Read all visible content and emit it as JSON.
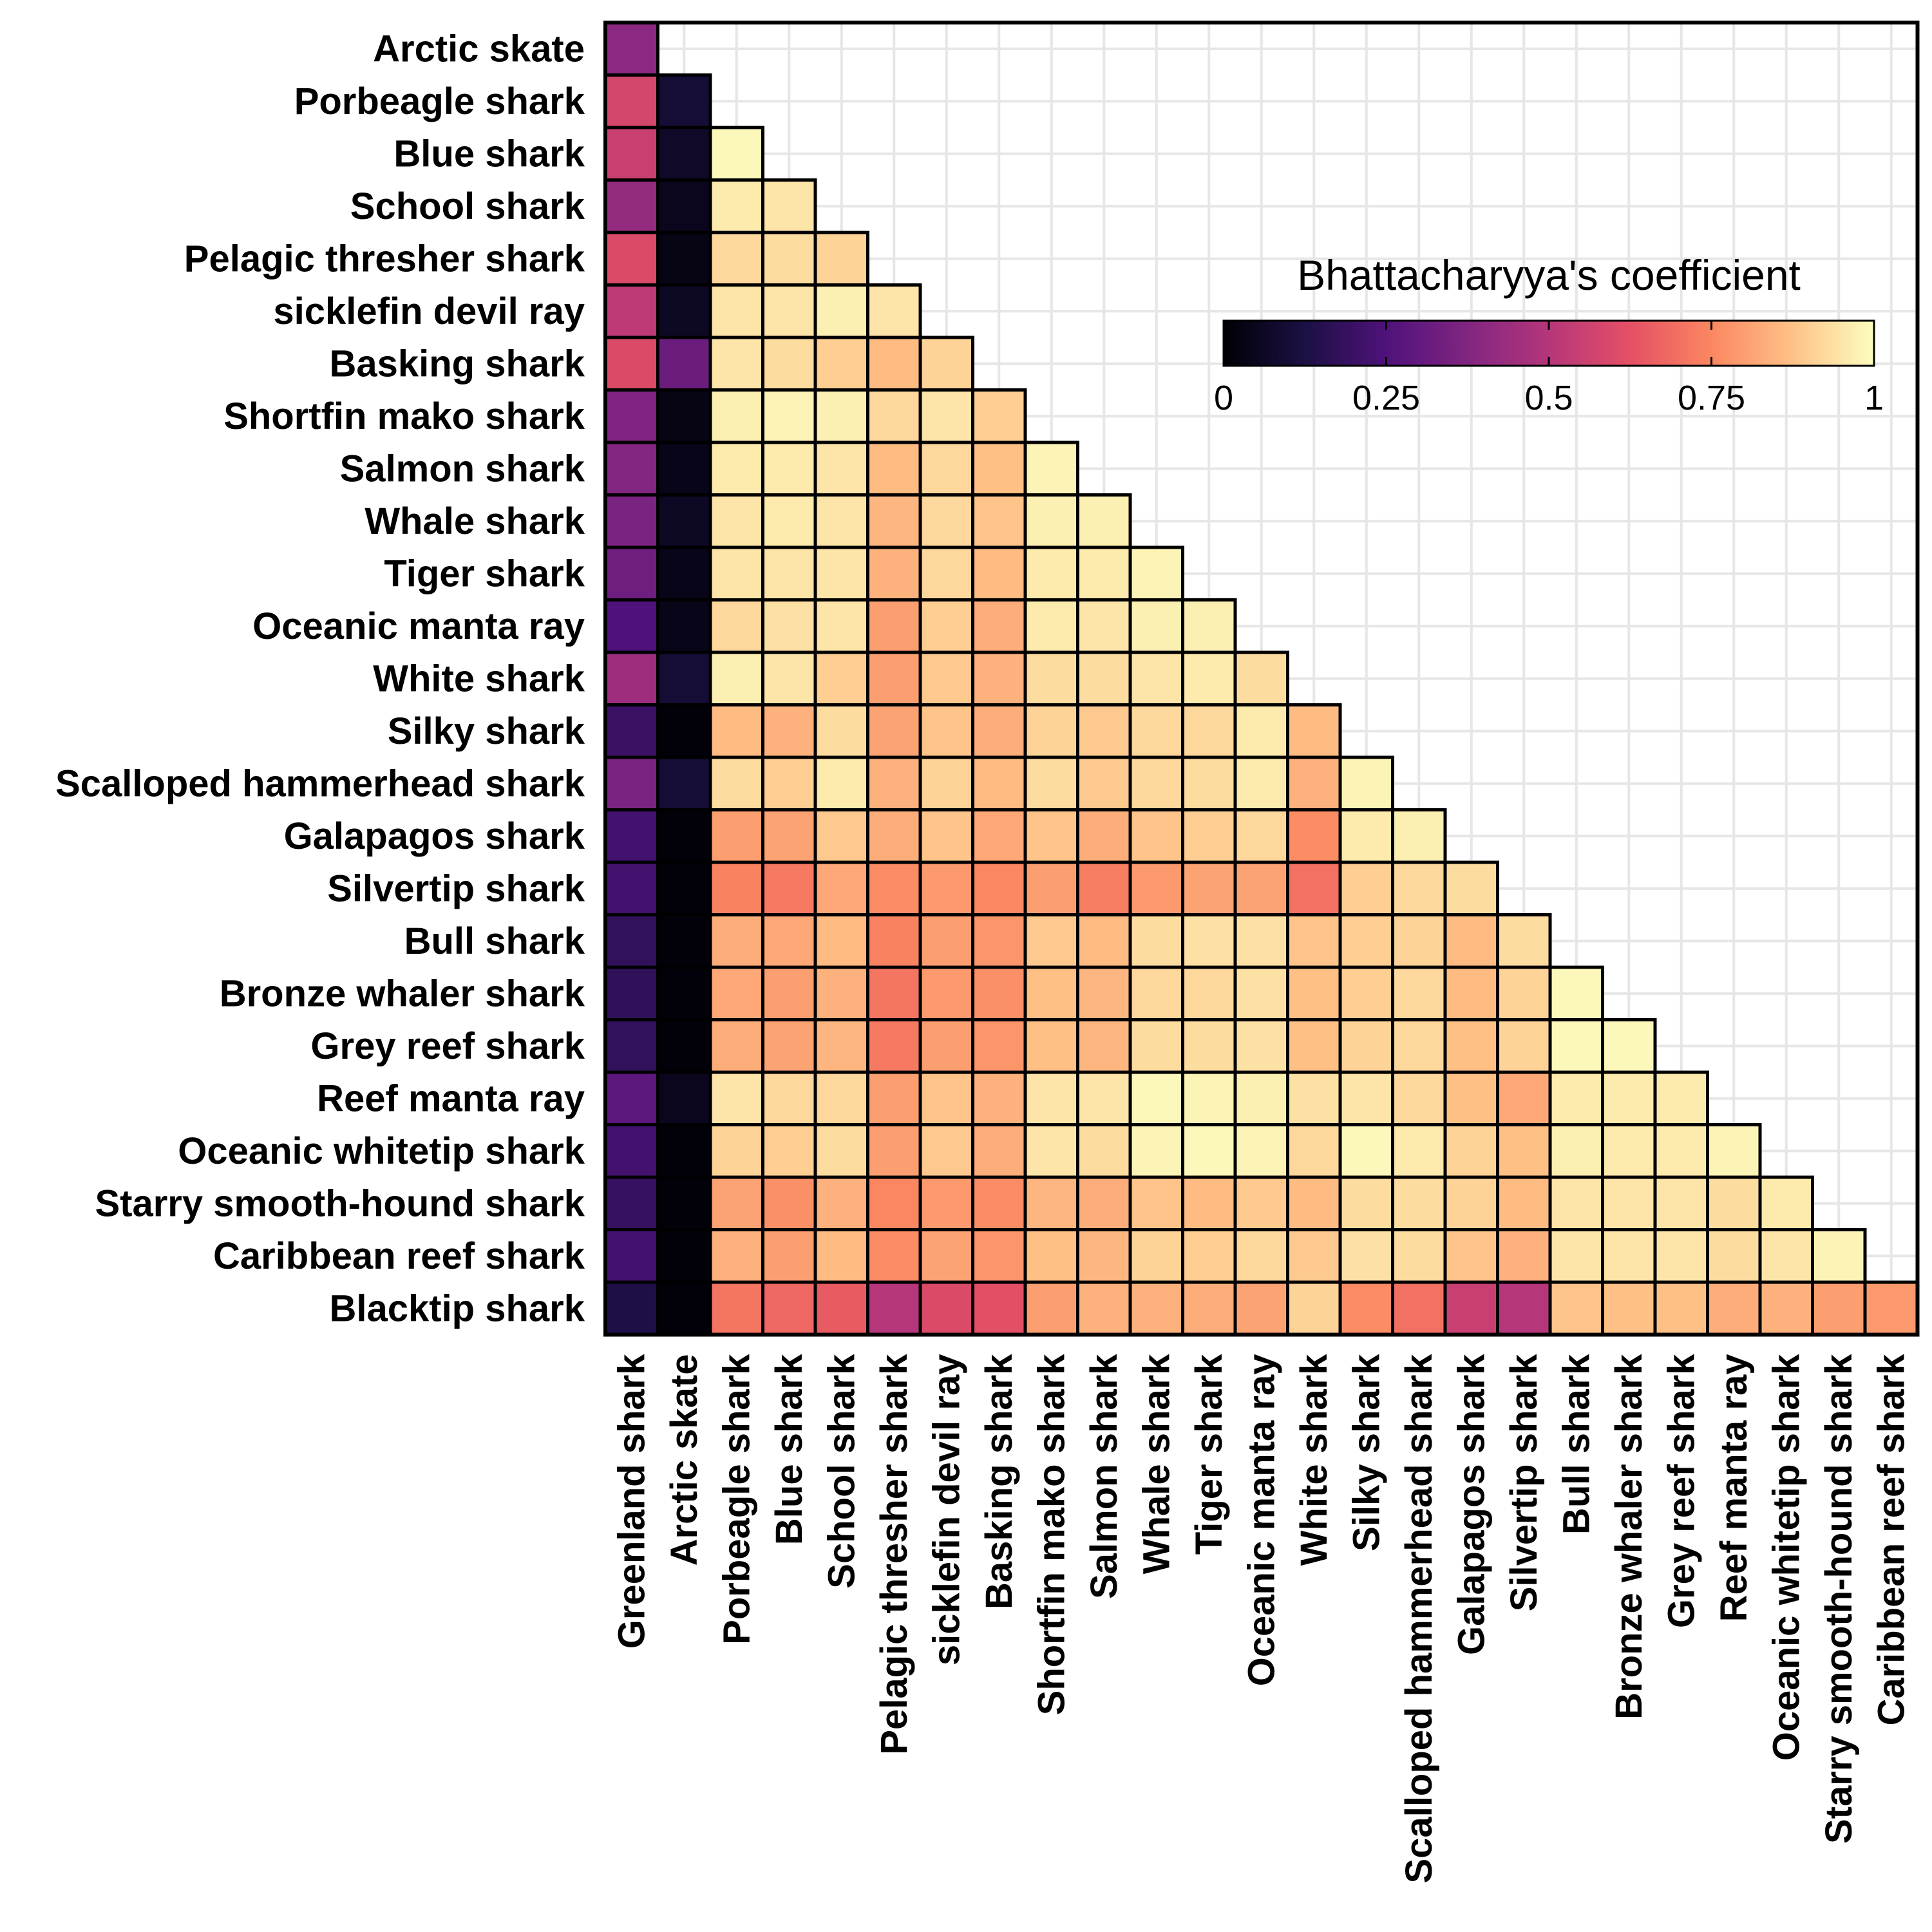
{
  "chart_data": {
    "type": "heatmap",
    "layout": "lower-triangular",
    "grid": true,
    "legend": {
      "title": "Bhattacharyya's coefficient",
      "placement": "top-right",
      "colormap": "magma",
      "ticks": [
        "0",
        "0.25",
        "0.5",
        "0.75",
        "1"
      ],
      "range": [
        0,
        1
      ]
    },
    "colors": {
      "magma": [
        "#000004",
        "#1c1044",
        "#4f127b",
        "#812581",
        "#b5367a",
        "#e55064",
        "#fb8761",
        "#fec287",
        "#fcfdbf"
      ],
      "cell_border": "#000000",
      "gridline": "#e6e6e6"
    },
    "x_categories": [
      "Greenland shark",
      "Arctic skate",
      "Porbeagle shark",
      "Blue shark",
      "School shark",
      "Pelagic thresher shark",
      "sicklefin devil ray",
      "Basking shark",
      "Shortfin mako shark",
      "Salmon shark",
      "Whale shark",
      "Tiger shark",
      "Oceanic manta ray",
      "White shark",
      "Silky shark",
      "Scalloped hammerhead shark",
      "Galapagos shark",
      "Silvertip shark",
      "Bull shark",
      "Bronze whaler shark",
      "Grey reef shark",
      "Reef manta ray",
      "Oceanic whitetip shark",
      "Starry smooth-hound shark",
      "Caribbean reef shark"
    ],
    "y_categories": [
      "Arctic skate",
      "Porbeagle shark",
      "Blue shark",
      "School shark",
      "Pelagic thresher shark",
      "sicklefin devil ray",
      "Basking shark",
      "Shortfin mako shark",
      "Salmon shark",
      "Whale shark",
      "Tiger shark",
      "Oceanic manta ray",
      "White shark",
      "Silky shark",
      "Scalloped hammerhead shark",
      "Galapagos shark",
      "Silvertip shark",
      "Bull shark",
      "Bronze whaler shark",
      "Grey reef shark",
      "Reef manta ray",
      "Oceanic whitetip shark",
      "Starry smooth-hound shark",
      "Caribbean reef shark",
      "Blacktip shark"
    ],
    "values": [
      [
        0.4
      ],
      [
        0.58,
        0.1
      ],
      [
        0.55,
        0.07,
        0.99
      ],
      [
        0.42,
        0.05,
        0.96,
        0.95
      ],
      [
        0.6,
        0.03,
        0.92,
        0.93,
        0.91
      ],
      [
        0.52,
        0.06,
        0.95,
        0.95,
        0.97,
        0.95
      ],
      [
        0.6,
        0.32,
        0.95,
        0.93,
        0.9,
        0.86,
        0.91
      ],
      [
        0.37,
        0.03,
        0.97,
        0.98,
        0.97,
        0.92,
        0.95,
        0.9
      ],
      [
        0.38,
        0.04,
        0.96,
        0.96,
        0.95,
        0.86,
        0.92,
        0.87,
        0.98
      ],
      [
        0.36,
        0.06,
        0.95,
        0.96,
        0.95,
        0.85,
        0.92,
        0.88,
        0.97,
        0.97
      ],
      [
        0.33,
        0.04,
        0.95,
        0.95,
        0.95,
        0.84,
        0.92,
        0.86,
        0.96,
        0.96,
        0.98
      ],
      [
        0.25,
        0.04,
        0.92,
        0.94,
        0.95,
        0.8,
        0.9,
        0.83,
        0.96,
        0.95,
        0.97,
        0.97
      ],
      [
        0.44,
        0.1,
        0.97,
        0.95,
        0.9,
        0.8,
        0.89,
        0.84,
        0.93,
        0.93,
        0.95,
        0.96,
        0.93
      ],
      [
        0.2,
        0.01,
        0.86,
        0.84,
        0.93,
        0.81,
        0.88,
        0.83,
        0.91,
        0.89,
        0.92,
        0.92,
        0.96,
        0.86
      ],
      [
        0.36,
        0.1,
        0.93,
        0.9,
        0.96,
        0.84,
        0.91,
        0.86,
        0.93,
        0.89,
        0.92,
        0.93,
        0.96,
        0.84,
        0.98
      ],
      [
        0.22,
        0.01,
        0.8,
        0.81,
        0.89,
        0.83,
        0.88,
        0.82,
        0.88,
        0.83,
        0.88,
        0.9,
        0.92,
        0.76,
        0.96,
        0.97
      ],
      [
        0.22,
        0.01,
        0.74,
        0.72,
        0.82,
        0.76,
        0.79,
        0.75,
        0.8,
        0.73,
        0.79,
        0.81,
        0.81,
        0.7,
        0.9,
        0.92,
        0.93
      ],
      [
        0.18,
        0.01,
        0.83,
        0.82,
        0.86,
        0.74,
        0.8,
        0.78,
        0.89,
        0.86,
        0.93,
        0.94,
        0.94,
        0.88,
        0.9,
        0.91,
        0.86,
        0.93
      ],
      [
        0.17,
        0.01,
        0.82,
        0.8,
        0.84,
        0.71,
        0.79,
        0.77,
        0.87,
        0.85,
        0.92,
        0.92,
        0.94,
        0.87,
        0.9,
        0.92,
        0.86,
        0.91,
        0.99
      ],
      [
        0.18,
        0.01,
        0.83,
        0.81,
        0.85,
        0.72,
        0.8,
        0.78,
        0.87,
        0.85,
        0.93,
        0.93,
        0.94,
        0.87,
        0.91,
        0.92,
        0.87,
        0.91,
        0.99,
        0.99
      ],
      [
        0.28,
        0.05,
        0.95,
        0.92,
        0.92,
        0.8,
        0.88,
        0.84,
        0.95,
        0.95,
        0.99,
        0.98,
        0.97,
        0.94,
        0.95,
        0.92,
        0.87,
        0.82,
        0.96,
        0.96,
        0.96
      ],
      [
        0.22,
        0.01,
        0.91,
        0.9,
        0.93,
        0.8,
        0.89,
        0.83,
        0.95,
        0.93,
        0.98,
        0.99,
        0.98,
        0.92,
        0.99,
        0.96,
        0.91,
        0.87,
        0.97,
        0.96,
        0.96,
        0.98
      ],
      [
        0.19,
        0.01,
        0.81,
        0.77,
        0.84,
        0.75,
        0.79,
        0.76,
        0.85,
        0.83,
        0.88,
        0.86,
        0.89,
        0.86,
        0.93,
        0.93,
        0.91,
        0.86,
        0.95,
        0.95,
        0.95,
        0.93,
        0.96
      ],
      [
        0.22,
        0.01,
        0.84,
        0.8,
        0.86,
        0.76,
        0.81,
        0.78,
        0.87,
        0.85,
        0.91,
        0.9,
        0.92,
        0.89,
        0.94,
        0.93,
        0.88,
        0.84,
        0.95,
        0.95,
        0.95,
        0.93,
        0.95,
        0.98
      ],
      [
        0.13,
        0.01,
        0.71,
        0.68,
        0.65,
        0.5,
        0.6,
        0.62,
        0.8,
        0.84,
        0.84,
        0.83,
        0.81,
        0.91,
        0.76,
        0.7,
        0.55,
        0.5,
        0.88,
        0.87,
        0.87,
        0.83,
        0.84,
        0.8,
        0.79
      ]
    ]
  }
}
